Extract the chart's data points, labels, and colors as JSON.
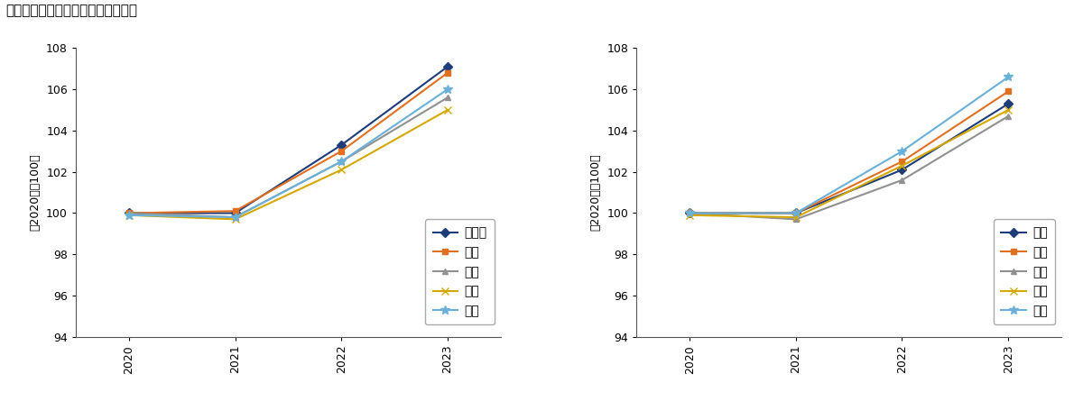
{
  "title": "地域別の消費者物価指数（総務省）",
  "ylabel": "（2020年＝100）",
  "years": [
    2020,
    2021,
    2022,
    2023
  ],
  "chart1": {
    "series": [
      {
        "label": "北海道",
        "values": [
          100.0,
          100.0,
          103.3,
          107.1
        ],
        "color": "#1f3c7a",
        "marker": "D",
        "markersize": 5
      },
      {
        "label": "東北",
        "values": [
          100.0,
          100.1,
          103.0,
          106.8
        ],
        "color": "#e07020",
        "marker": "s",
        "markersize": 5
      },
      {
        "label": "関東",
        "values": [
          100.0,
          99.8,
          102.5,
          105.6
        ],
        "color": "#909090",
        "marker": "^",
        "markersize": 5
      },
      {
        "label": "北陸",
        "values": [
          99.9,
          99.7,
          102.1,
          105.0
        ],
        "color": "#d4a800",
        "marker": "x",
        "markersize": 6
      },
      {
        "label": "東海",
        "values": [
          99.9,
          99.8,
          102.5,
          106.0
        ],
        "color": "#6ab0d8",
        "marker": "*",
        "markersize": 7
      }
    ]
  },
  "chart2": {
    "series": [
      {
        "label": "近畿",
        "values": [
          100.0,
          100.0,
          102.1,
          105.3
        ],
        "color": "#1f3c7a",
        "marker": "D",
        "markersize": 5
      },
      {
        "label": "中国",
        "values": [
          100.0,
          100.0,
          102.5,
          105.9
        ],
        "color": "#e07020",
        "marker": "s",
        "markersize": 5
      },
      {
        "label": "四国",
        "values": [
          100.0,
          99.7,
          101.6,
          104.7
        ],
        "color": "#909090",
        "marker": "^",
        "markersize": 5
      },
      {
        "label": "九州",
        "values": [
          99.9,
          99.8,
          102.3,
          105.0
        ],
        "color": "#d4a800",
        "marker": "x",
        "markersize": 6
      },
      {
        "label": "沖縄",
        "values": [
          100.0,
          100.0,
          103.0,
          106.6
        ],
        "color": "#6ab0d8",
        "marker": "*",
        "markersize": 7
      }
    ]
  },
  "ylim": [
    94,
    108
  ],
  "yticks": [
    94,
    96,
    98,
    100,
    102,
    104,
    106,
    108
  ],
  "background_color": "#ffffff",
  "legend_fontsize": 10,
  "axis_fontsize": 9,
  "title_fontsize": 11
}
